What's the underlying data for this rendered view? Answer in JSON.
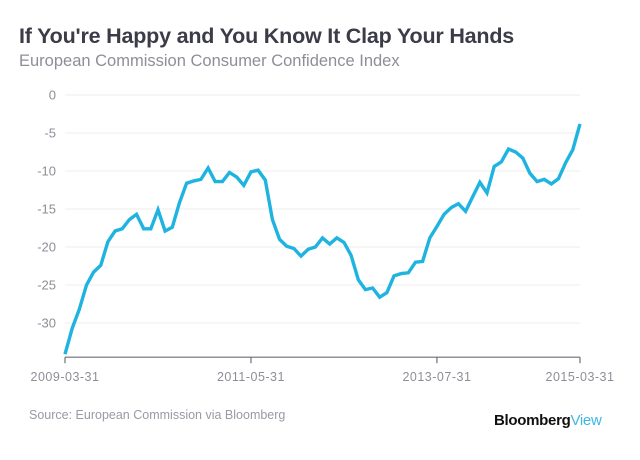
{
  "header": {
    "title": "If You're Happy and You Know It Clap Your Hands",
    "subtitle": "European Commission Consumer Confidence Index"
  },
  "footer": {
    "source": "Source: European Commission via Bloomberg",
    "logo_part1": "Bloomberg",
    "logo_part2": "View"
  },
  "colors": {
    "line": "#1fb3e0",
    "grid": "#ececec",
    "axis": "#6e6e78",
    "logo_accent": "#3fb6e6"
  },
  "chart_data": {
    "type": "line",
    "title": "If You're Happy and You Know It Clap Your Hands",
    "subtitle": "European Commission Consumer Confidence Index",
    "xlabel": "",
    "ylabel": "",
    "grid": true,
    "legend": "none",
    "x_start": "2009-03-31",
    "x_end": "2015-03-31",
    "frequency": "monthly",
    "x_ticks": [
      "2009-03-31",
      "2011-05-31",
      "2013-07-31",
      "2015-03-31"
    ],
    "y_ticks": [
      0,
      -5,
      -10,
      -15,
      -20,
      -25,
      -30
    ],
    "ylim": [
      -34.5,
      0
    ],
    "series": [
      {
        "name": "Consumer Confidence Index",
        "values": [
          -34.1,
          -30.7,
          -28.2,
          -25.0,
          -23.3,
          -22.4,
          -19.3,
          -17.9,
          -17.6,
          -16.4,
          -15.7,
          -17.6,
          -17.6,
          -15.1,
          -17.9,
          -17.4,
          -14.2,
          -11.6,
          -11.3,
          -11.1,
          -9.6,
          -11.4,
          -11.4,
          -10.2,
          -10.8,
          -11.9,
          -10.1,
          -9.9,
          -11.2,
          -16.4,
          -19.0,
          -19.9,
          -20.2,
          -21.2,
          -20.3,
          -20.0,
          -18.8,
          -19.6,
          -18.8,
          -19.4,
          -21.1,
          -24.3,
          -25.6,
          -25.4,
          -26.6,
          -26.0,
          -23.8,
          -23.5,
          -23.4,
          -22.0,
          -21.9,
          -18.8,
          -17.3,
          -15.7,
          -14.8,
          -14.3,
          -15.3,
          -13.4,
          -11.5,
          -12.9,
          -9.4,
          -8.8,
          -7.1,
          -7.5,
          -8.3,
          -10.3,
          -11.4,
          -11.1,
          -11.7,
          -11.0,
          -8.9,
          -7.2,
          -3.8
        ]
      }
    ],
    "source": "Source: European Commission via Bloomberg"
  }
}
